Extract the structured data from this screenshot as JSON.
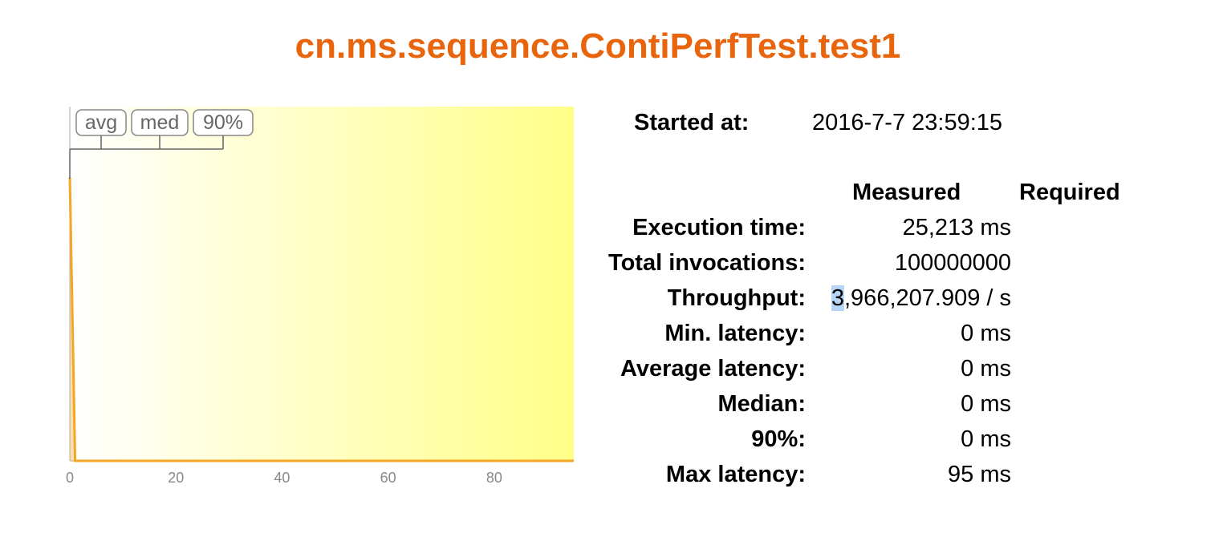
{
  "title": "cn.ms.sequence.ContiPerfTest.test1",
  "colors": {
    "title": "#e8650e",
    "curve": "#f5a623",
    "gradient_start": "#ffffff",
    "gradient_end": "#ffff88",
    "selection": "#b7d5f7"
  },
  "chart_data": {
    "type": "area",
    "title": "",
    "xlabel": "",
    "ylabel": "",
    "xlim": [
      0,
      95
    ],
    "xticks": [
      0,
      20,
      40,
      60,
      80
    ],
    "markers": [
      {
        "label": "avg",
        "value": 0
      },
      {
        "label": "med",
        "value": 0
      },
      {
        "label": "90%",
        "value": 0
      }
    ],
    "x": [
      0,
      1,
      95
    ],
    "y": [
      1.0,
      0.0,
      0.0
    ],
    "grid": false
  },
  "started": {
    "label": "Started at:",
    "value": "2016-7-7 23:59:15"
  },
  "table": {
    "col_measured": "Measured",
    "col_required": "Required",
    "rows": [
      {
        "label": "Execution time:",
        "measured": "25,213 ms",
        "required": ""
      },
      {
        "label": "Total invocations:",
        "measured": "100000000",
        "required": ""
      },
      {
        "label": "Throughput:",
        "measured": "3,966,207.909 / s",
        "measured_selected": "3",
        "measured_rest": ",966,207.909 / s",
        "required": ""
      },
      {
        "label": "Min. latency:",
        "measured": "0 ms",
        "required": ""
      },
      {
        "label": "Average latency:",
        "measured": "0 ms",
        "required": ""
      },
      {
        "label": "Median:",
        "measured": "0 ms",
        "required": ""
      },
      {
        "label": "90%:",
        "measured": "0 ms",
        "required": ""
      },
      {
        "label": "Max latency:",
        "measured": "95 ms",
        "required": ""
      }
    ]
  }
}
